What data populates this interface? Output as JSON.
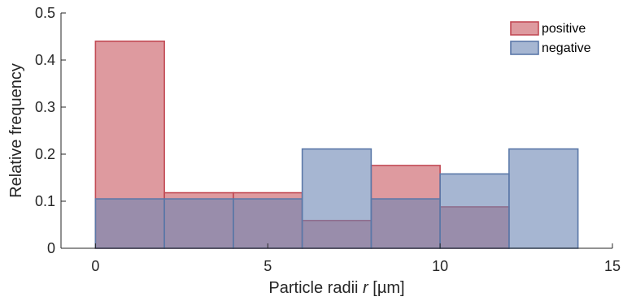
{
  "chart_data": {
    "type": "histogram",
    "xlabel_prefix": "Particle radii ",
    "xlabel_var": "r",
    "xlabel_suffix": " [µm]",
    "ylabel": "Relative frequency",
    "xlim": [
      -1,
      15
    ],
    "ylim": [
      0,
      0.5
    ],
    "xticks": [
      0,
      5,
      10,
      15
    ],
    "yticks": [
      0,
      0.1,
      0.2,
      0.3,
      0.4,
      0.5
    ],
    "xtick_labels": [
      "0",
      "5",
      "10",
      "15"
    ],
    "ytick_labels": [
      "0",
      "0.1",
      "0.2",
      "0.3",
      "0.4",
      "0.5"
    ],
    "bin_edges": [
      0,
      2,
      4,
      6,
      8,
      10,
      12,
      14
    ],
    "legend_position": "top-right",
    "grid": false,
    "series": [
      {
        "name": "positive",
        "fill": "#c8565f",
        "edge": "#c24b55",
        "values": [
          0.44,
          0.118,
          0.118,
          0.059,
          0.176,
          0.088,
          0.0
        ]
      },
      {
        "name": "negative",
        "fill": "#6a86b4",
        "edge": "#5b78a8",
        "values": [
          0.105,
          0.105,
          0.105,
          0.211,
          0.105,
          0.158,
          0.211
        ]
      }
    ]
  }
}
